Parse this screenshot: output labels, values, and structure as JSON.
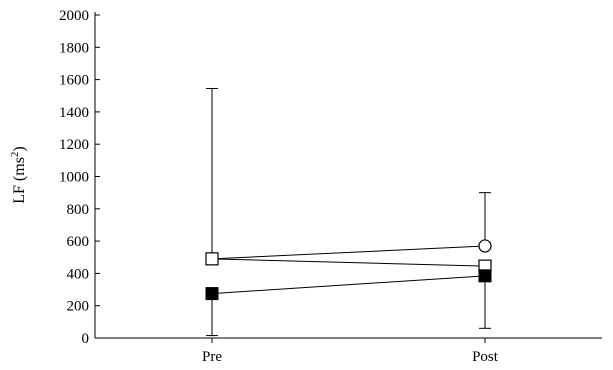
{
  "chart_data": {
    "type": "line",
    "categories": [
      "Pre",
      "Post"
    ],
    "ylabel_main": "LF (ms",
    "ylabel_sup": "2",
    "ylabel_close": ")",
    "ylim": [
      0,
      2000
    ],
    "yticks": [
      0,
      200,
      400,
      600,
      800,
      1000,
      1200,
      1400,
      1600,
      1800,
      2000
    ],
    "grid": false,
    "series": [
      {
        "marker": "open-square",
        "values": [
          490,
          445
        ],
        "err_low": [
          null,
          null
        ],
        "err_high": [
          1545,
          null
        ]
      },
      {
        "marker": "filled-square",
        "values": [
          275,
          385
        ],
        "err_low": [
          15,
          60
        ],
        "err_high": [
          null,
          null
        ]
      },
      {
        "marker": "open-circle",
        "values": [
          490,
          570
        ],
        "err_low": [
          null,
          null
        ],
        "err_high": [
          null,
          900
        ]
      }
    ]
  }
}
